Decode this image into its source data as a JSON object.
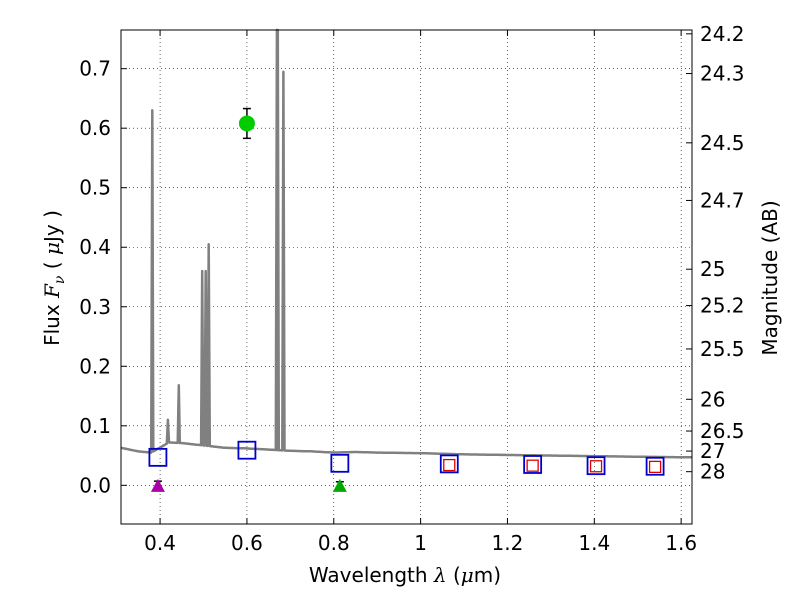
{
  "chart_data": {
    "type": "scatter",
    "xlabel": {
      "prefix": "Wavelength  ",
      "symbol": "λ",
      "unit_open": " (",
      "unit_symbol": "μ",
      "unit_rest": "m)"
    },
    "ylabel": {
      "prefix": "Flux  ",
      "symbol": "F",
      "subscript": "ν",
      "unit_open": "  ( ",
      "unit_symbol": "μ",
      "unit_rest": "Jy )"
    },
    "y2label": "Magnitude (AB)",
    "xlim": [
      0.31,
      1.625
    ],
    "ylim": [
      -0.065,
      0.765
    ],
    "grid": true,
    "x_ticks": [
      {
        "value": 0.4,
        "label": "0.4"
      },
      {
        "value": 0.6,
        "label": "0.6"
      },
      {
        "value": 0.8,
        "label": "0.8"
      },
      {
        "value": 1.0,
        "label": "1"
      },
      {
        "value": 1.2,
        "label": "1.2"
      },
      {
        "value": 1.4,
        "label": "1.4"
      },
      {
        "value": 1.6,
        "label": "1.6"
      }
    ],
    "y_ticks": [
      {
        "value": 0.0,
        "label": "0.0"
      },
      {
        "value": 0.1,
        "label": "0.1"
      },
      {
        "value": 0.2,
        "label": "0.2"
      },
      {
        "value": 0.3,
        "label": "0.3"
      },
      {
        "value": 0.4,
        "label": "0.4"
      },
      {
        "value": 0.5,
        "label": "0.5"
      },
      {
        "value": 0.6,
        "label": "0.6"
      },
      {
        "value": 0.7,
        "label": "0.7"
      }
    ],
    "y2_ticks": [
      {
        "mag": 24.2,
        "label": "24.2"
      },
      {
        "mag": 24.3,
        "label": "24.3"
      },
      {
        "mag": 24.5,
        "label": "24.5"
      },
      {
        "mag": 24.7,
        "label": "24.7"
      },
      {
        "mag": 25.0,
        "label": "25"
      },
      {
        "mag": 25.2,
        "label": "25.2"
      },
      {
        "mag": 25.5,
        "label": "25.5"
      },
      {
        "mag": 26.0,
        "label": "26"
      },
      {
        "mag": 26.5,
        "label": "26.5"
      },
      {
        "mag": 27.0,
        "label": "27"
      },
      {
        "mag": 28.0,
        "label": "28"
      }
    ],
    "sed_continuum": {
      "color": "#808080",
      "x": [
        0.31,
        0.35,
        0.38,
        0.42,
        0.45,
        0.5,
        0.55,
        0.6,
        0.65,
        0.7,
        0.75,
        0.8,
        0.85,
        0.9,
        1.0,
        1.1,
        1.2,
        1.3,
        1.4,
        1.5,
        1.625
      ],
      "y": [
        0.063,
        0.057,
        0.055,
        0.072,
        0.071,
        0.067,
        0.063,
        0.062,
        0.06,
        0.058,
        0.057,
        0.055,
        0.056,
        0.055,
        0.054,
        0.052,
        0.051,
        0.05,
        0.049,
        0.048,
        0.047
      ]
    },
    "emission_lines": [
      {
        "x": 0.382,
        "peak": 0.63
      },
      {
        "x": 0.418,
        "peak": 0.11
      },
      {
        "x": 0.443,
        "peak": 0.168
      },
      {
        "x": 0.497,
        "peak": 0.36
      },
      {
        "x": 0.505,
        "peak": 0.36
      },
      {
        "x": 0.512,
        "peak": 0.405
      },
      {
        "x": 0.669,
        "peak": 0.765
      },
      {
        "x": 0.671,
        "peak": 0.765
      },
      {
        "x": 0.684,
        "peak": 0.695
      }
    ],
    "observed": [
      {
        "x": 0.6,
        "y": 0.608,
        "yerr": 0.025,
        "marker": "circle",
        "color": "#00cc00"
      },
      {
        "x": 0.395,
        "y": 0.0,
        "yerr": 0.007,
        "marker": "triangle",
        "color": "#aa00aa"
      },
      {
        "x": 0.814,
        "y": 0.0,
        "yerr": 0.006,
        "marker": "triangle",
        "color": "#00aa00"
      }
    ],
    "model_bands": [
      {
        "x": 0.395,
        "y": 0.047
      },
      {
        "x": 0.6,
        "y": 0.059
      },
      {
        "x": 0.814,
        "y": 0.037
      },
      {
        "x": 1.066,
        "y": 0.036
      },
      {
        "x": 1.258,
        "y": 0.035
      },
      {
        "x": 1.404,
        "y": 0.033
      },
      {
        "x": 1.54,
        "y": 0.032
      }
    ],
    "model_band_color": "#0000cc",
    "upper_limits": [
      {
        "x": 1.066,
        "y": 0.034
      },
      {
        "x": 1.258,
        "y": 0.033
      },
      {
        "x": 1.404,
        "y": 0.032
      },
      {
        "x": 1.54,
        "y": 0.031
      }
    ],
    "upper_limit_color": "#dd0000"
  }
}
